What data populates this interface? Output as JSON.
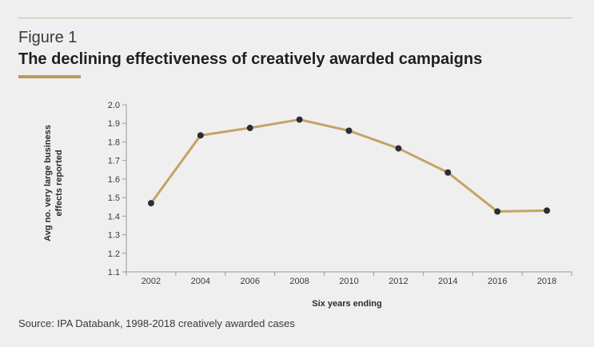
{
  "figure_label": "Figure 1",
  "title": "The declining effectiveness of creatively awarded campaigns",
  "source": "Source: IPA Databank, 1998-2018 creatively awarded cases",
  "colors": {
    "line": "#c3a466",
    "marker": "#2d2d38",
    "accent": "#b99b5b",
    "background": "#efefef"
  },
  "chart_data": {
    "type": "line",
    "x": [
      "2002",
      "2004",
      "2006",
      "2008",
      "2010",
      "2012",
      "2014",
      "2016",
      "2018"
    ],
    "series": [
      {
        "values": [
          1.47,
          1.835,
          1.875,
          1.92,
          1.86,
          1.765,
          1.635,
          1.425,
          1.43
        ]
      }
    ],
    "xlabel": "Six years ending",
    "ylabel_lines": [
      "Avg no. very large business",
      "effects reported"
    ],
    "ylim": [
      1.1,
      2.0
    ],
    "yticks": [
      "1.1",
      "1.2",
      "1.3",
      "1.4",
      "1.5",
      "1.6",
      "1.7",
      "1.8",
      "1.9",
      "2.0"
    ],
    "grid": false,
    "legend": "none"
  }
}
